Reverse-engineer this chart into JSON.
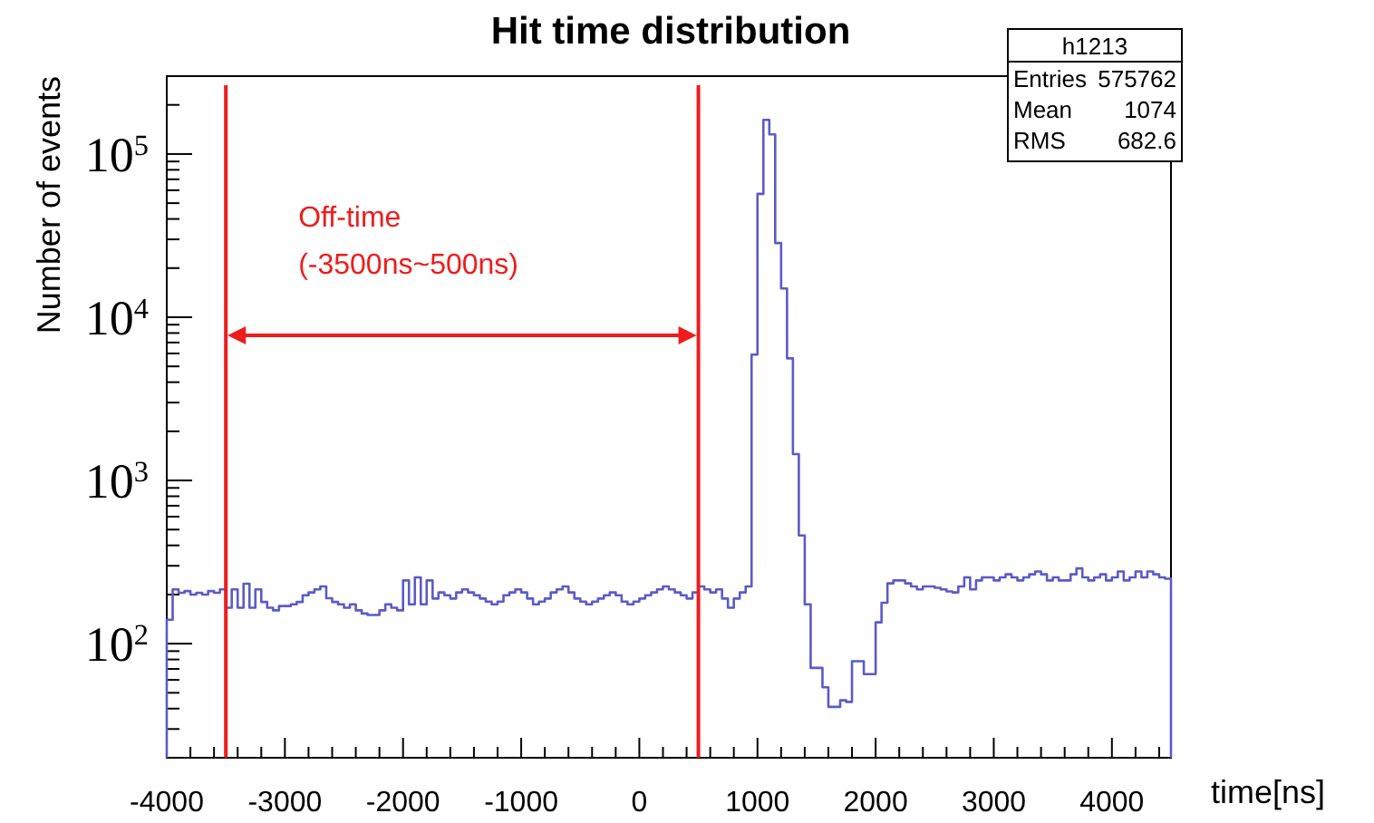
{
  "chart_data": {
    "type": "histogram",
    "title": "Hit time distribution",
    "xlabel": "time[ns]",
    "ylabel": "Number of events",
    "color": "#5b5bc6",
    "log": true,
    "xlim": [
      -4000,
      4500
    ],
    "ylim": [
      20,
      300000
    ],
    "xticks": [
      -4000,
      {
        "value": -3800,
        "label": null
      },
      {
        "value": -3600,
        "label": null
      },
      {
        "value": -3400,
        "label": null
      },
      {
        "value": -3200,
        "label": null
      },
      -3000,
      {
        "value": -2800,
        "label": null
      },
      {
        "value": -2600,
        "label": null
      },
      {
        "value": -2400,
        "label": null
      },
      {
        "value": -2200,
        "label": null
      },
      -2000,
      {
        "value": -1800,
        "label": null
      },
      {
        "value": -1600,
        "label": null
      },
      {
        "value": -1400,
        "label": null
      },
      {
        "value": -1200,
        "label": null
      },
      -1000,
      {
        "value": -800,
        "label": null
      },
      {
        "value": -600,
        "label": null
      },
      {
        "value": -400,
        "label": null
      },
      {
        "value": -200,
        "label": null
      },
      0,
      {
        "value": 200,
        "label": null
      },
      {
        "value": 400,
        "label": null
      },
      {
        "value": 600,
        "label": null
      },
      {
        "value": 800,
        "label": null
      },
      1000,
      {
        "value": 1200,
        "label": null
      },
      {
        "value": 1400,
        "label": null
      },
      {
        "value": 1600,
        "label": null
      },
      {
        "value": 1800,
        "label": null
      },
      2000,
      {
        "value": 2200,
        "label": null
      },
      {
        "value": 2400,
        "label": null
      },
      {
        "value": 2600,
        "label": null
      },
      {
        "value": 2800,
        "label": null
      },
      3000,
      {
        "value": 3200,
        "label": null
      },
      {
        "value": 3400,
        "label": null
      },
      {
        "value": 3600,
        "label": null
      },
      {
        "value": 3800,
        "label": null
      },
      4000,
      {
        "value": 4200,
        "label": null
      },
      {
        "value": 4400,
        "label": null
      }
    ],
    "yticks": [
      {
        "value": 20,
        "label": null
      },
      {
        "value": 30,
        "label": null
      },
      {
        "value": 40,
        "label": null
      },
      {
        "value": 50,
        "label": null
      },
      {
        "value": 60,
        "label": null
      },
      {
        "value": 70,
        "label": null
      },
      {
        "value": 80,
        "label": null
      },
      {
        "value": 90,
        "label": null
      },
      {
        "value": 100,
        "label": "10$^{2}$"
      },
      {
        "value": 200,
        "label": null
      },
      {
        "value": 300,
        "label": null
      },
      {
        "value": 400,
        "label": null
      },
      {
        "value": 500,
        "label": null
      },
      {
        "value": 600,
        "label": null
      },
      {
        "value": 700,
        "label": null
      },
      {
        "value": 800,
        "label": null
      },
      {
        "value": 900,
        "label": null
      },
      {
        "value": 1000,
        "label": "10$^{3}$"
      },
      {
        "value": 2000,
        "label": null
      },
      {
        "value": 3000,
        "label": null
      },
      {
        "value": 4000,
        "label": null
      },
      {
        "value": 5000,
        "label": null
      },
      {
        "value": 6000,
        "label": null
      },
      {
        "value": 7000,
        "label": null
      },
      {
        "value": 8000,
        "label": null
      },
      {
        "value": 9000,
        "label": null
      },
      {
        "value": 10000,
        "label": "10$^{4}$"
      },
      {
        "value": 20000,
        "label": null
      },
      {
        "value": 30000,
        "label": null
      },
      {
        "value": 40000,
        "label": null
      },
      {
        "value": 50000,
        "label": null
      },
      {
        "value": 60000,
        "label": null
      },
      {
        "value": 70000,
        "label": null
      },
      {
        "value": 80000,
        "label": null
      },
      {
        "value": 90000,
        "label": null
      },
      {
        "value": 100000,
        "label": "10$^{5}$"
      },
      {
        "value": 200000,
        "label": null
      },
      {
        "value": 300000,
        "label": null
      }
    ],
    "bins": [
      -4000,
      -3950,
      -3900,
      -3850,
      -3800,
      -3750,
      -3700,
      -3650,
      -3600,
      -3550,
      -3500,
      -3450,
      -3400,
      -3350,
      -3300,
      -3250,
      -3200,
      -3150,
      -3100,
      -3050,
      -3000,
      -2950,
      -2900,
      -2850,
      -2800,
      -2750,
      -2700,
      -2650,
      -2600,
      -2550,
      -2500,
      -2450,
      -2400,
      -2350,
      -2300,
      -2250,
      -2200,
      -2150,
      -2100,
      -2050,
      -2000,
      -1950,
      -1900,
      -1850,
      -1800,
      -1750,
      -1700,
      -1650,
      -1600,
      -1550,
      -1500,
      -1450,
      -1400,
      -1350,
      -1300,
      -1250,
      -1200,
      -1150,
      -1100,
      -1050,
      -1000,
      -950,
      -900,
      -850,
      -800,
      -750,
      -700,
      -650,
      -600,
      -550,
      -500,
      -450,
      -400,
      -350,
      -300,
      -250,
      -200,
      -150,
      -100,
      -50,
      0,
      50,
      100,
      150,
      200,
      250,
      300,
      350,
      400,
      450,
      500,
      550,
      600,
      650,
      700,
      750,
      800,
      850,
      900,
      950,
      1000,
      1050,
      1100,
      1150,
      1200,
      1250,
      1300,
      1350,
      1400,
      1450,
      1500,
      1550,
      1600,
      1650,
      1700,
      1750,
      1800,
      1850,
      1900,
      1950,
      2000,
      2050,
      2100,
      2150,
      2200,
      2250,
      2300,
      2350,
      2400,
      2450,
      2500,
      2550,
      2600,
      2650,
      2700,
      2750,
      2800,
      2850,
      2900,
      2950,
      3000,
      3050,
      3100,
      3150,
      3200,
      3250,
      3300,
      3350,
      3400,
      3450,
      3500,
      3550,
      3600,
      3650,
      3700,
      3750,
      3800,
      3850,
      3900,
      3950,
      4000,
      4050,
      4100,
      4150,
      4200,
      4250,
      4300,
      4350,
      4400,
      4450,
      4500
    ],
    "values": [
      140,
      215,
      205,
      210,
      200,
      205,
      200,
      210,
      205,
      215,
      166,
      215,
      166,
      233,
      166,
      215,
      180,
      166,
      160,
      170,
      170,
      174,
      180,
      198,
      206,
      215,
      224,
      190,
      180,
      174,
      166,
      174,
      160,
      153,
      150,
      150,
      160,
      174,
      166,
      160,
      244,
      174,
      255,
      174,
      244,
      189,
      206,
      198,
      189,
      206,
      215,
      206,
      198,
      189,
      181,
      174,
      181,
      198,
      206,
      215,
      206,
      189,
      174,
      181,
      189,
      206,
      215,
      224,
      206,
      189,
      181,
      174,
      181,
      189,
      198,
      206,
      198,
      181,
      174,
      181,
      189,
      198,
      206,
      215,
      224,
      215,
      206,
      198,
      189,
      206,
      224,
      215,
      206,
      215,
      189,
      166,
      189,
      206,
      224,
      5900,
      57000,
      162000,
      132000,
      28500,
      15000,
      5600,
      1450,
      460,
      174,
      71,
      71,
      54,
      41,
      41,
      45,
      44,
      78,
      78,
      65,
      65,
      135,
      178,
      234,
      244,
      244,
      234,
      224,
      215,
      224,
      224,
      220,
      215,
      209,
      206,
      224,
      255,
      215,
      244,
      255,
      255,
      244,
      255,
      266,
      255,
      244,
      255,
      266,
      277,
      266,
      244,
      255,
      244,
      244,
      266,
      289,
      255,
      244,
      255,
      266,
      244,
      255,
      277,
      244,
      255,
      277,
      255,
      277,
      266,
      255,
      250
    ],
    "ref_lines": [
      {
        "axis": "x",
        "value": -3500,
        "color": "#ee1c1c"
      },
      {
        "axis": "x",
        "value": 500,
        "color": "#ee1c1c"
      }
    ],
    "annotations": [
      "Off-time\n(-3500ns~500ns)",
      "h1213",
      "Entries",
      "575762",
      "Mean",
      "1074",
      "RMS",
      "682.6"
    ]
  }
}
